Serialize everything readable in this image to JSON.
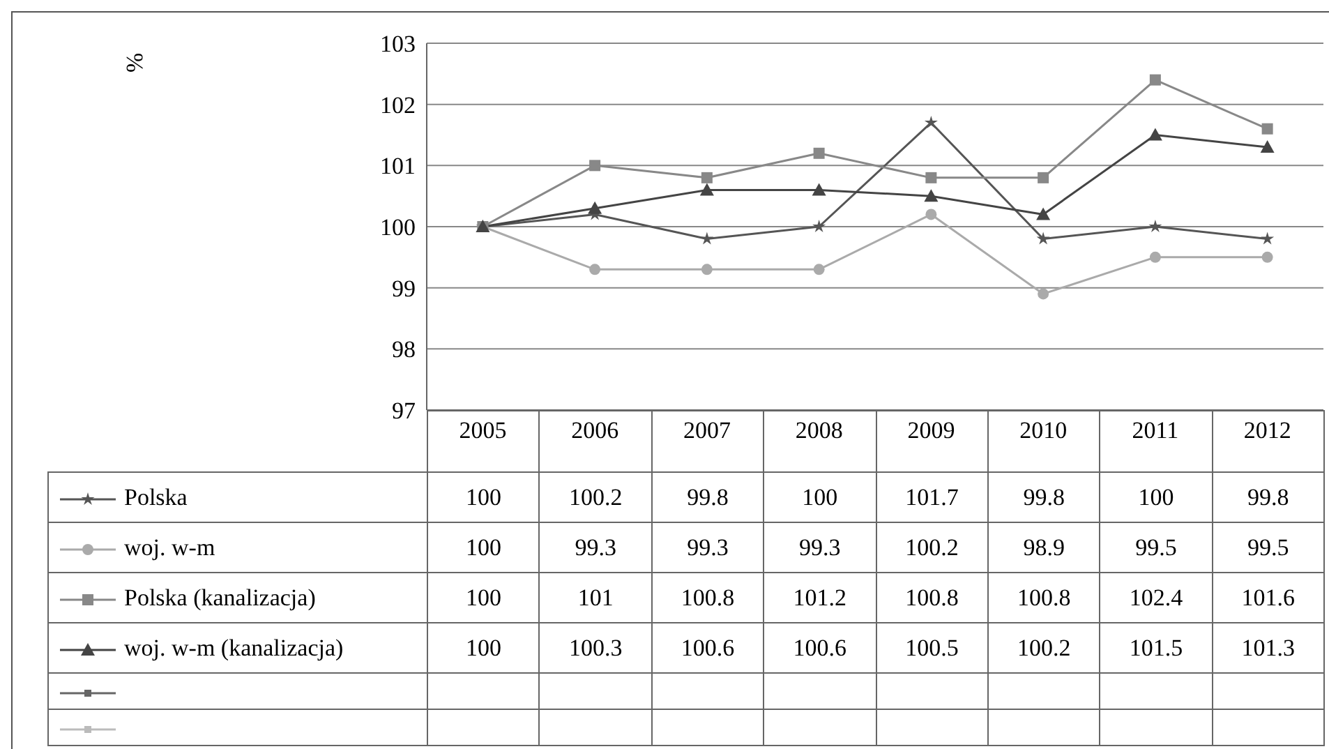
{
  "chart_data": {
    "type": "line",
    "annotations": [
      "%"
    ],
    "categories": [
      "2005",
      "2006",
      "2007",
      "2008",
      "2009",
      "2010",
      "2011",
      "2012"
    ],
    "ylim": [
      97,
      103
    ],
    "yticks": [
      97,
      98,
      99,
      100,
      101,
      102,
      103
    ],
    "grid": "y",
    "legend": "bottom",
    "data_labels": true,
    "series": [
      {
        "name": "Polska",
        "color": "#555555",
        "marker": "star",
        "values": [
          100,
          100.2,
          99.8,
          100,
          101.7,
          99.8,
          100,
          99.8
        ]
      },
      {
        "name": "woj. w-m",
        "color": "#aaaaaa",
        "marker": "circle",
        "values": [
          100,
          99.3,
          99.3,
          99.3,
          100.2,
          98.9,
          99.5,
          99.5
        ]
      },
      {
        "name": "Polska (kanalizacja)",
        "color": "#888888",
        "marker": "square",
        "values": [
          100,
          101,
          100.8,
          101.2,
          100.8,
          100.8,
          102.4,
          101.6
        ]
      },
      {
        "name": "woj. w-m (kanalizacja)",
        "color": "#444444",
        "marker": "triangle",
        "values": [
          100,
          100.3,
          100.6,
          100.6,
          100.5,
          100.2,
          101.5,
          101.3
        ]
      },
      {
        "color": "#666666",
        "marker": "square",
        "values": [
          null,
          null,
          null,
          null,
          null,
          null,
          null,
          null
        ]
      },
      {
        "color": "#bbbbbb",
        "marker": "square",
        "values": [
          null,
          null,
          null,
          null,
          null,
          null,
          null,
          null
        ]
      }
    ]
  }
}
